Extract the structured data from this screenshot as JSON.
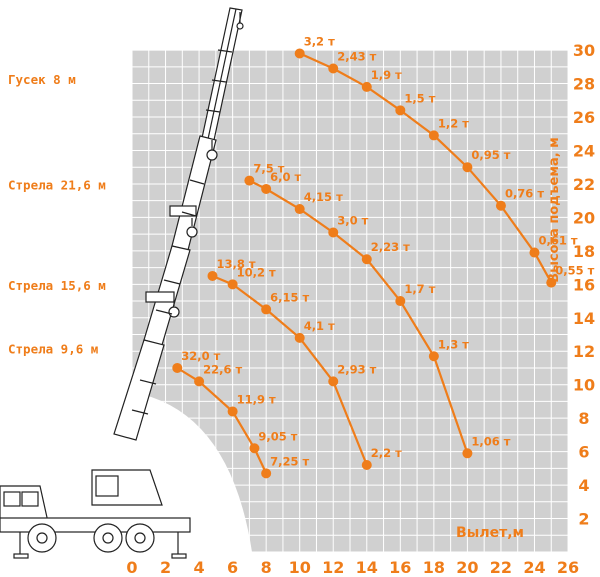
{
  "chart_data": {
    "type": "line",
    "title": "",
    "xlabel": "Вылет,м",
    "ylabel": "Высота подъема, м",
    "xlim": [
      0,
      26
    ],
    "ylim": [
      0,
      30
    ],
    "x_ticks": [
      "0",
      "2",
      "4",
      "6",
      "8",
      "10",
      "12",
      "14",
      "16",
      "18",
      "20",
      "22",
      "24",
      "26"
    ],
    "y_ticks": [
      "2",
      "4",
      "6",
      "8",
      "10",
      "12",
      "14",
      "16",
      "18",
      "20",
      "22",
      "24",
      "26",
      "28",
      "30"
    ],
    "grid": true,
    "colors": {
      "accent": "#ef7d1a",
      "grid_bg": "#d0d0d0",
      "grid_line": "#ffffff"
    },
    "boom_labels": [
      {
        "text": "Гусек 8 м",
        "y": 28.2
      },
      {
        "text": "Стрела 21,6 м",
        "y": 21.9
      },
      {
        "text": "Стрела 15,6 м",
        "y": 15.9
      },
      {
        "text": "Стрела 9,6 м",
        "y": 12.1
      }
    ],
    "series": [
      {
        "x": [
          2.7,
          4.0,
          6.0,
          7.3,
          8.0
        ],
        "y": [
          11.0,
          10.2,
          8.4,
          6.2,
          4.7
        ],
        "labels": [
          "32,0 т",
          "22,6 т",
          "11,9 т",
          "9,05 т",
          "7,25 т"
        ]
      },
      {
        "x": [
          4.8,
          6.0,
          8.0,
          10.0,
          12.0,
          14.0
        ],
        "y": [
          16.5,
          16.0,
          14.5,
          12.8,
          10.2,
          5.2
        ],
        "labels": [
          "13,8 т",
          "10,2 т",
          "6,15 т",
          "4,1 т",
          "2,93 т",
          "2,2 т"
        ]
      },
      {
        "x": [
          7.0,
          8.0,
          10.0,
          12.0,
          14.0,
          16.0,
          18.0,
          20.0
        ],
        "y": [
          22.2,
          21.7,
          20.5,
          19.1,
          17.5,
          15.0,
          11.7,
          5.9
        ],
        "labels": [
          "7,5 т",
          "6,0 т",
          "4,15 т",
          "3,0 т",
          "2,23 т",
          "1,7 т",
          "1,3 т",
          "1,06 т"
        ]
      },
      {
        "x": [
          10.0,
          12.0,
          14.0,
          16.0,
          18.0,
          20.0,
          22.0,
          24.0,
          25.0
        ],
        "y": [
          29.8,
          28.9,
          27.8,
          26.4,
          24.9,
          23.0,
          20.7,
          17.9,
          16.1
        ],
        "labels": [
          "3,2 т",
          "2,43 т",
          "1,9 т",
          "1,5 т",
          "1,2 т",
          "0,95 т",
          "0,76 т",
          "0,61 т",
          "0,55 т"
        ]
      }
    ]
  }
}
